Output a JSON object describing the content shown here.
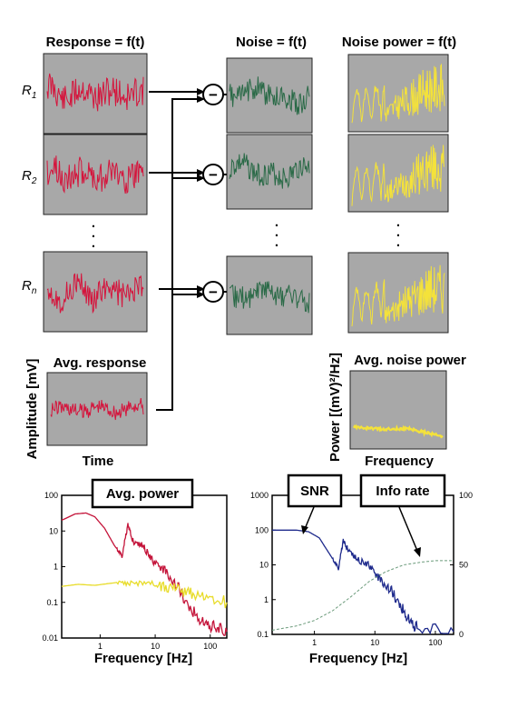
{
  "headers": {
    "response": "Response = f(t)",
    "noise": "Noise = f(t)",
    "noise_power": "Noise power = f(t)"
  },
  "rows": [
    {
      "label_base": "R",
      "label_sub": "1"
    },
    {
      "label_base": "R",
      "label_sub": "2"
    },
    {
      "label_base": "R",
      "label_sub": "n"
    }
  ],
  "ellipsis": ".",
  "minus_symbol": "−",
  "avg_response": {
    "title": "Avg. response",
    "xlabel": "Time",
    "ylabel": "Amplitude [mV]"
  },
  "avg_noise_power": {
    "title": "Avg. noise power",
    "xlabel": "Frequency",
    "ylabel": "Power [(mV)²/Hz]"
  },
  "colors": {
    "response": "#d5143c",
    "noise": "#2a6a47",
    "noise_power": "#f4e23a",
    "panel_bg": "#a8a8a8",
    "power_red": "#c4143a",
    "power_yellow": "#e8dc2a",
    "snr": "#1e2a8c",
    "info": "#6a9a7a"
  },
  "chart_data": [
    {
      "type": "line",
      "title": "Avg. power",
      "xlabel": "Frequency [Hz]",
      "ylabel": "",
      "xscale": "log",
      "yscale": "log",
      "xlim": [
        0.2,
        200
      ],
      "ylim": [
        0.01,
        100
      ],
      "x_ticks": [
        "1",
        "10",
        "100"
      ],
      "y_ticks": [
        "100",
        "10",
        "1",
        "0.1",
        "0.01"
      ],
      "series": [
        {
          "color": "#c4143a",
          "points": [
            [
              0.2,
              20
            ],
            [
              0.35,
              30
            ],
            [
              0.55,
              32
            ],
            [
              0.8,
              25
            ],
            [
              1.2,
              12
            ],
            [
              1.8,
              4
            ],
            [
              2.5,
              2
            ],
            [
              3.2,
              15
            ],
            [
              4,
              5
            ],
            [
              6,
              4
            ],
            [
              9,
              1.5
            ],
            [
              15,
              0.8
            ],
            [
              25,
              0.3
            ],
            [
              40,
              0.08
            ],
            [
              70,
              0.03
            ],
            [
              120,
              0.02
            ],
            [
              200,
              0.015
            ]
          ]
        },
        {
          "color": "#e8dc2a",
          "points": [
            [
              0.2,
              0.28
            ],
            [
              0.4,
              0.32
            ],
            [
              0.8,
              0.3
            ],
            [
              2,
              0.36
            ],
            [
              4,
              0.33
            ],
            [
              10,
              0.3
            ],
            [
              20,
              0.25
            ],
            [
              40,
              0.2
            ],
            [
              80,
              0.15
            ],
            [
              200,
              0.1
            ]
          ]
        }
      ]
    },
    {
      "type": "line",
      "title": "",
      "xlabel": "Frequency [Hz]",
      "xscale": "log",
      "yscale": "log",
      "xlim": [
        0.2,
        200
      ],
      "ylim": [
        0.1,
        1000
      ],
      "y2lim": [
        0,
        100
      ],
      "x_ticks": [
        "1",
        "10",
        "100"
      ],
      "y_ticks": [
        "1000",
        "100",
        "10",
        "1",
        "0.1"
      ],
      "y2_ticks": [
        "100",
        "50",
        "0"
      ],
      "annotations": [
        "SNR",
        "Info rate"
      ],
      "series": [
        {
          "color": "#1e2a8c",
          "axis": "left",
          "points": [
            [
              0.2,
              100
            ],
            [
              0.5,
              100
            ],
            [
              0.8,
              90
            ],
            [
              1.2,
              60
            ],
            [
              1.8,
              20
            ],
            [
              2.5,
              8
            ],
            [
              3,
              50
            ],
            [
              3.5,
              30
            ],
            [
              5,
              15
            ],
            [
              8,
              10
            ],
            [
              12,
              4
            ],
            [
              18,
              2
            ],
            [
              25,
              0.8
            ],
            [
              35,
              0.3
            ],
            [
              50,
              0.15
            ],
            [
              200,
              0.12
            ]
          ]
        },
        {
          "color": "#6a9a7a",
          "axis": "right",
          "points": [
            [
              0.2,
              3
            ],
            [
              0.5,
              6
            ],
            [
              1,
              10
            ],
            [
              2,
              17
            ],
            [
              4,
              27
            ],
            [
              8,
              38
            ],
            [
              15,
              45
            ],
            [
              30,
              50
            ],
            [
              60,
              52
            ],
            [
              100,
              53
            ],
            [
              200,
              53
            ]
          ]
        }
      ]
    }
  ]
}
